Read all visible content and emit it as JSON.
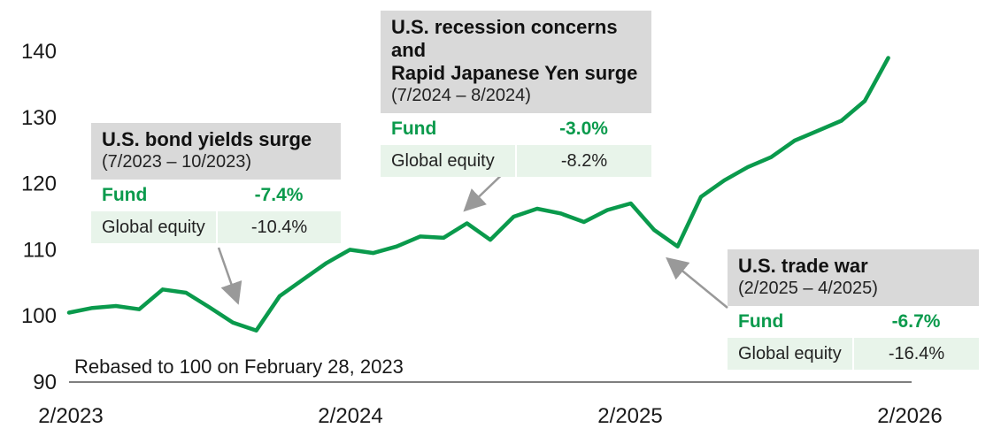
{
  "chart_data": {
    "type": "line",
    "note": "Rebased to 100 on February 28, 2023",
    "y_ticks": [
      90,
      100,
      110,
      120,
      130,
      140
    ],
    "ylim": [
      90,
      140
    ],
    "x_ticks": [
      "2/2023",
      "2/2024",
      "2/2025",
      "2/2026"
    ],
    "line_color": "#0a9a4c",
    "series": [
      {
        "x": [
          "2023-02",
          "2023-03",
          "2023-04",
          "2023-05",
          "2023-06",
          "2023-07",
          "2023-08",
          "2023-09",
          "2023-10",
          "2023-11",
          "2023-12",
          "2024-01",
          "2024-02",
          "2024-03",
          "2024-04",
          "2024-05",
          "2024-06",
          "2024-07",
          "2024-08",
          "2024-09",
          "2024-10",
          "2024-11",
          "2024-12",
          "2025-01",
          "2025-02",
          "2025-03",
          "2025-04",
          "2025-05",
          "2025-06",
          "2025-07",
          "2025-08",
          "2025-09",
          "2025-10",
          "2025-11",
          "2025-12",
          "2026-01"
        ],
        "values": [
          100.5,
          101.2,
          101.5,
          101.0,
          104.0,
          103.5,
          101.3,
          99.0,
          97.8,
          103.0,
          105.5,
          108.0,
          110.0,
          109.5,
          110.5,
          112.0,
          111.8,
          114.0,
          111.5,
          115.0,
          116.2,
          115.5,
          114.2,
          116.0,
          117.0,
          113.0,
          110.5,
          118.0,
          120.5,
          122.5,
          124.0,
          126.5,
          128.0,
          129.5,
          132.5,
          139.0
        ]
      }
    ],
    "annotations": [
      {
        "title": "U.S. bond yields surge",
        "period": "(7/2023 – 10/2023)",
        "fund_label": "Fund",
        "fund_value": "-7.4%",
        "equity_label": "Global equity",
        "equity_value": "-10.4%"
      },
      {
        "title": "U.S. recession concerns and",
        "title2": "Rapid Japanese Yen surge",
        "period": "(7/2024 – 8/2024)",
        "fund_label": "Fund",
        "fund_value": "-3.0%",
        "equity_label": "Global equity",
        "equity_value": "-8.2%"
      },
      {
        "title": "U.S. trade war",
        "period": "(2/2025 – 4/2025)",
        "fund_label": "Fund",
        "fund_value": "-6.7%",
        "equity_label": "Global equity",
        "equity_value": "-16.4%"
      }
    ]
  }
}
